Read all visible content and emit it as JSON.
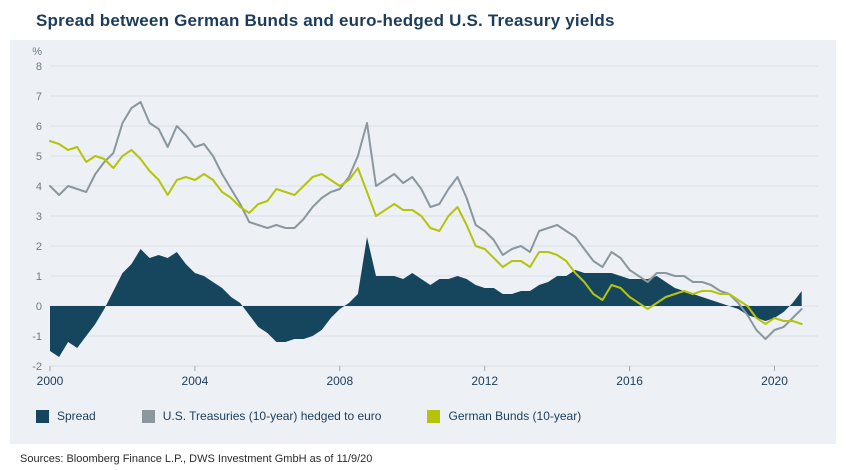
{
  "title": "Spread between German Bunds and euro-hedged U.S. Treasury yields",
  "source": "Sources: Bloomberg Finance L.P., DWS Investment GmbH as of 11/9/20",
  "chart_data": {
    "type": "line",
    "title": "Spread between German Bunds and euro-hedged U.S. Treasury yields",
    "unit_label": "%",
    "xlabel": "",
    "ylabel": "%",
    "ylim": [
      -2,
      8
    ],
    "xlim": [
      2000,
      2021.2
    ],
    "yticks": [
      8,
      7,
      6,
      5,
      4,
      3,
      2,
      1,
      0,
      -1,
      -2
    ],
    "xticks": [
      2000,
      2004,
      2008,
      2012,
      2016,
      2020
    ],
    "grid": true,
    "legend_position": "bottom",
    "colors": {
      "panel_bg": "#edf1f5",
      "grid": "#d9e0e6",
      "axis_text": "#6b7a86",
      "year_text": "#1c3c59",
      "title_text": "#1c3c59"
    },
    "x": [
      2000,
      2000.25,
      2000.5,
      2000.75,
      2001,
      2001.25,
      2001.5,
      2001.75,
      2002,
      2002.25,
      2002.5,
      2002.75,
      2003,
      2003.25,
      2003.5,
      2003.75,
      2004,
      2004.25,
      2004.5,
      2004.75,
      2005,
      2005.25,
      2005.5,
      2005.75,
      2006,
      2006.25,
      2006.5,
      2006.75,
      2007,
      2007.25,
      2007.5,
      2007.75,
      2008,
      2008.25,
      2008.5,
      2008.75,
      2009,
      2009.25,
      2009.5,
      2009.75,
      2010,
      2010.25,
      2010.5,
      2010.75,
      2011,
      2011.25,
      2011.5,
      2011.75,
      2012,
      2012.25,
      2012.5,
      2012.75,
      2013,
      2013.25,
      2013.5,
      2013.75,
      2014,
      2014.25,
      2014.5,
      2014.75,
      2015,
      2015.25,
      2015.5,
      2015.75,
      2016,
      2016.25,
      2016.5,
      2016.75,
      2017,
      2017.25,
      2017.5,
      2017.75,
      2018,
      2018.25,
      2018.5,
      2018.75,
      2019,
      2019.25,
      2019.5,
      2019.75,
      2020,
      2020.25,
      2020.5,
      2020.75
    ],
    "series": [
      {
        "name": "Spread",
        "type": "area",
        "color": "#16465e",
        "values": [
          -1.5,
          -1.7,
          -1.2,
          -1.4,
          -1.0,
          -0.6,
          -0.1,
          0.5,
          1.1,
          1.4,
          1.9,
          1.6,
          1.7,
          1.6,
          1.8,
          1.4,
          1.1,
          1.0,
          0.8,
          0.6,
          0.3,
          0.1,
          -0.3,
          -0.7,
          -0.9,
          -1.2,
          -1.2,
          -1.1,
          -1.1,
          -1.0,
          -0.8,
          -0.4,
          -0.1,
          0.1,
          0.4,
          2.3,
          1.0,
          1.0,
          1.0,
          0.9,
          1.1,
          0.9,
          0.7,
          0.9,
          0.9,
          1.0,
          0.9,
          0.7,
          0.6,
          0.6,
          0.4,
          0.4,
          0.5,
          0.5,
          0.7,
          0.8,
          1.0,
          1.0,
          1.2,
          1.1,
          1.1,
          1.1,
          1.1,
          1.0,
          0.9,
          0.9,
          0.9,
          1.0,
          0.8,
          0.6,
          0.5,
          0.4,
          0.3,
          0.2,
          0.1,
          0.0,
          -0.1,
          -0.3,
          -0.4,
          -0.5,
          -0.4,
          -0.2,
          0.1,
          0.5
        ]
      },
      {
        "name": "U.S. Treasuries (10-year) hedged to euro",
        "type": "line",
        "color": "#8a979f",
        "values": [
          4.0,
          3.7,
          4.0,
          3.9,
          3.8,
          4.4,
          4.8,
          5.1,
          6.1,
          6.6,
          6.8,
          6.1,
          5.9,
          5.3,
          6.0,
          5.7,
          5.3,
          5.4,
          5.0,
          4.4,
          3.9,
          3.4,
          2.8,
          2.7,
          2.6,
          2.7,
          2.6,
          2.6,
          2.9,
          3.3,
          3.6,
          3.8,
          3.9,
          4.3,
          5.0,
          6.1,
          4.0,
          4.2,
          4.4,
          4.1,
          4.3,
          3.9,
          3.3,
          3.4,
          3.9,
          4.3,
          3.6,
          2.7,
          2.5,
          2.2,
          1.7,
          1.9,
          2.0,
          1.8,
          2.5,
          2.6,
          2.7,
          2.5,
          2.3,
          1.9,
          1.5,
          1.3,
          1.8,
          1.6,
          1.2,
          1.0,
          0.8,
          1.1,
          1.1,
          1.0,
          1.0,
          0.8,
          0.8,
          0.7,
          0.5,
          0.4,
          0.1,
          -0.3,
          -0.8,
          -1.1,
          -0.8,
          -0.7,
          -0.4,
          -0.1
        ]
      },
      {
        "name": "German Bunds (10-year)",
        "type": "line",
        "color": "#b5c40b",
        "values": [
          5.5,
          5.4,
          5.2,
          5.3,
          4.8,
          5.0,
          4.9,
          4.6,
          5.0,
          5.2,
          4.9,
          4.5,
          4.2,
          3.7,
          4.2,
          4.3,
          4.2,
          4.4,
          4.2,
          3.8,
          3.6,
          3.3,
          3.1,
          3.4,
          3.5,
          3.9,
          3.8,
          3.7,
          4.0,
          4.3,
          4.4,
          4.2,
          4.0,
          4.2,
          4.6,
          3.8,
          3.0,
          3.2,
          3.4,
          3.2,
          3.2,
          3.0,
          2.6,
          2.5,
          3.0,
          3.3,
          2.7,
          2.0,
          1.9,
          1.6,
          1.3,
          1.5,
          1.5,
          1.3,
          1.8,
          1.8,
          1.7,
          1.5,
          1.1,
          0.8,
          0.4,
          0.2,
          0.7,
          0.6,
          0.3,
          0.1,
          -0.1,
          0.1,
          0.3,
          0.4,
          0.5,
          0.4,
          0.5,
          0.5,
          0.4,
          0.4,
          0.2,
          0.0,
          -0.4,
          -0.6,
          -0.4,
          -0.5,
          -0.5,
          -0.6
        ]
      }
    ]
  }
}
